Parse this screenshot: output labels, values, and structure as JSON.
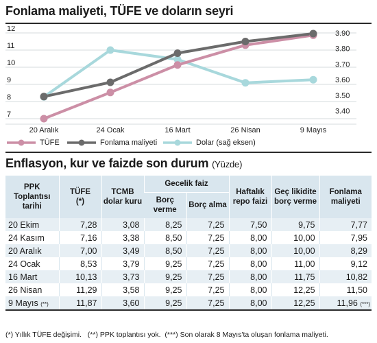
{
  "header": {
    "title": "Fonlama maliyeti, TÜFE ve doların seyri"
  },
  "chart_data": {
    "type": "line",
    "categories": [
      "20 Aralık",
      "24 Ocak",
      "16 Mart",
      "26 Nisan",
      "9 Mayıs"
    ],
    "left_axis": {
      "ticks": [
        "7",
        "8",
        "9",
        "10",
        "11",
        "12"
      ],
      "ylim": [
        7,
        12
      ]
    },
    "right_axis": {
      "ticks": [
        "3.40",
        "3.50",
        "3.60",
        "3.70",
        "3.80",
        "3.90"
      ],
      "ylim": [
        3.35,
        3.9
      ]
    },
    "series": [
      {
        "name": "TÜFE",
        "axis": "left",
        "color": "#cc8fa6",
        "values": [
          7.0,
          8.53,
          10.13,
          11.29,
          11.87
        ]
      },
      {
        "name": "Fonlama maliyeti",
        "axis": "left",
        "color": "#6b6b6b",
        "values": [
          8.29,
          9.12,
          10.82,
          11.5,
          11.96
        ]
      },
      {
        "name": "Dolar (sağ eksen)",
        "axis": "right",
        "color": "#a8d8dc",
        "values": [
          3.49,
          3.79,
          3.73,
          3.58,
          3.6
        ]
      }
    ]
  },
  "section2": {
    "title": "Enflasyon, kur ve faizde son durum",
    "unit": "(Yüzde)"
  },
  "table": {
    "headers": {
      "ppk": "PPK Toplantısı tarihi",
      "tufe": "TÜFE",
      "tufe_note": "(*)",
      "tcmb": "TCMB dolar kuru",
      "gecelik": "Gecelik faiz",
      "borc_verme": "Borç verme",
      "borc_alma": "Borç alma",
      "haftalik": "Haftalık repo faizi",
      "gec_likidite": "Geç likidite borç verme",
      "fonlama": "Fonlama maliyeti"
    },
    "rows": [
      {
        "date": "20 Ekim",
        "date_note": "",
        "tufe": "7,28",
        "dolar": "3,08",
        "verme": "8,25",
        "alma": "7,25",
        "repo": "7,50",
        "gec": "9,75",
        "fon": "7,77",
        "fon_note": ""
      },
      {
        "date": "24 Kasım",
        "date_note": "",
        "tufe": "7,16",
        "dolar": "3,38",
        "verme": "8,50",
        "alma": "7,25",
        "repo": "8,00",
        "gec": "10,00",
        "fon": "7,95",
        "fon_note": ""
      },
      {
        "date": "20 Aralık",
        "date_note": "",
        "tufe": "7,00",
        "dolar": "3,49",
        "verme": "8,50",
        "alma": "7,25",
        "repo": "8,00",
        "gec": "10,00",
        "fon": "8,29",
        "fon_note": ""
      },
      {
        "date": "24 Ocak",
        "date_note": "",
        "tufe": "8,53",
        "dolar": "3,79",
        "verme": "9,25",
        "alma": "7,25",
        "repo": "8,00",
        "gec": "11,00",
        "fon": "9,12",
        "fon_note": ""
      },
      {
        "date": "16 Mart",
        "date_note": "",
        "tufe": "10,13",
        "dolar": "3,73",
        "verme": "9,25",
        "alma": "7,25",
        "repo": "8,00",
        "gec": "11,75",
        "fon": "10,82",
        "fon_note": ""
      },
      {
        "date": "26 Nisan",
        "date_note": "",
        "tufe": "11,29",
        "dolar": "3,58",
        "verme": "9,25",
        "alma": "7,25",
        "repo": "8,00",
        "gec": "12,25",
        "fon": "11,50",
        "fon_note": ""
      },
      {
        "date": "9 Mayıs",
        "date_note": "(**)",
        "tufe": "11,87",
        "dolar": "3,60",
        "verme": "9,25",
        "alma": "7,25",
        "repo": "8,00",
        "gec": "12,25",
        "fon": "11,96",
        "fon_note": "(***)"
      }
    ]
  },
  "footnote": "(*) Yıllık TÜFE değişimi.   (**) PPK toplantısı yok.  (***) Son olarak 8 Mayıs'ta oluşan fonlama maliyeti."
}
